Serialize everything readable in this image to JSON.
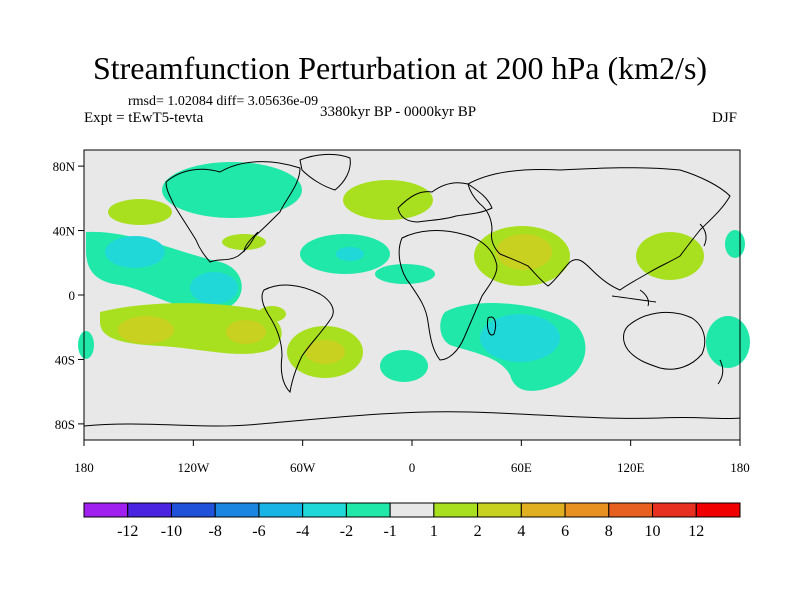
{
  "header": {
    "title": "Streamfunction Perturbation at 200 hPa (km2/s)",
    "rmsd_line": "rmsd= 1.02084 diff= 3.05636e-09",
    "experiment": "Expt = tEwT5-tevta",
    "period": "3380kyr BP - 0000kyr BP",
    "season": "DJF"
  },
  "map": {
    "x_ticks": [
      "180",
      "120W",
      "60W",
      "0",
      "60E",
      "120E",
      "180"
    ],
    "y_ticks": [
      "80N",
      "40N",
      "0",
      "40S",
      "80S"
    ]
  },
  "colorbar": {
    "labels": [
      "-12",
      "-10",
      "-8",
      "-6",
      "-4",
      "-2",
      "-1",
      "1",
      "2",
      "4",
      "6",
      "8",
      "10",
      "12"
    ],
    "colors": [
      "#a020f0",
      "#4a24e0",
      "#1f52d8",
      "#1a86e0",
      "#19b4e6",
      "#20d8d8",
      "#20e8a8",
      "#e8e8e8",
      "#a8e020",
      "#c8d020",
      "#e0b020",
      "#e89020",
      "#e86020",
      "#e83020",
      "#f00000"
    ]
  }
}
